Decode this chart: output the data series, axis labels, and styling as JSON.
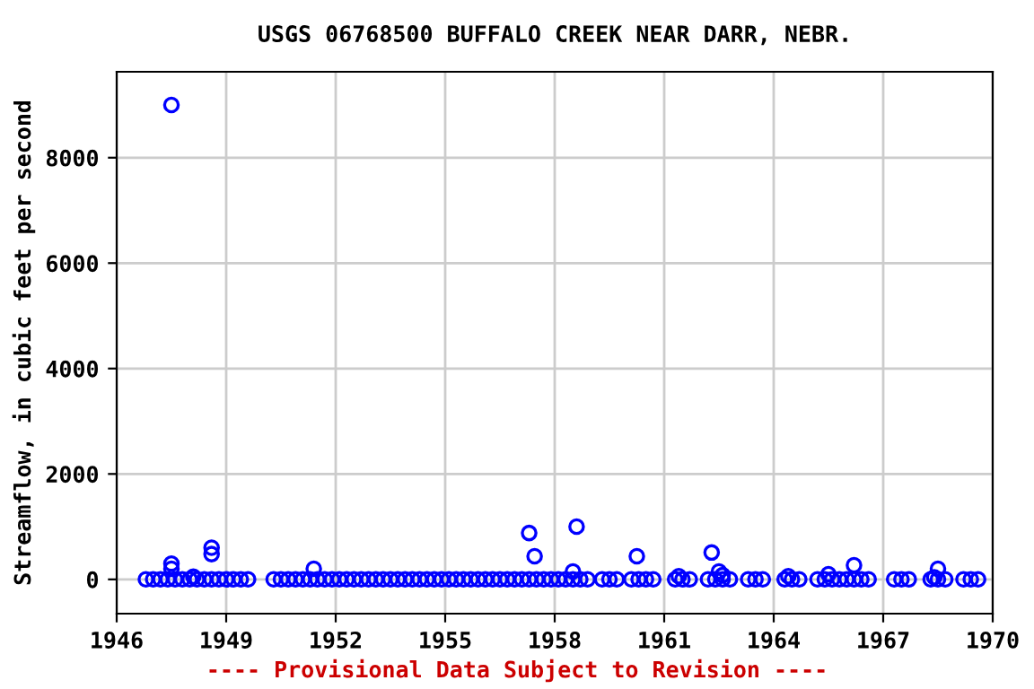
{
  "chart_data": {
    "type": "scatter",
    "title": "USGS 06768500 BUFFALO CREEK NEAR DARR, NEBR.",
    "ylabel": "Streamflow, in cubic feet per second",
    "annotations": [
      "---- Provisional Data Subject to Revision ----"
    ],
    "series": [
      {
        "color": "#0000ff",
        "x": [
          1946.8,
          1947.0,
          1947.2,
          1947.4,
          1947.6,
          1947.8,
          1948.0,
          1948.2,
          1948.4,
          1948.6,
          1948.8,
          1949.0,
          1949.2,
          1949.4,
          1949.6,
          1950.3,
          1950.5,
          1950.7,
          1950.9,
          1951.1,
          1951.3,
          1951.5,
          1951.7,
          1951.9,
          1952.1,
          1952.3,
          1952.5,
          1952.7,
          1952.9,
          1953.1,
          1953.3,
          1953.5,
          1953.7,
          1953.9,
          1954.1,
          1954.3,
          1954.5,
          1954.7,
          1954.9,
          1955.1,
          1955.3,
          1955.5,
          1955.7,
          1955.9,
          1956.1,
          1956.3,
          1956.5,
          1956.7,
          1956.9,
          1957.1,
          1957.3,
          1957.5,
          1957.7,
          1957.9,
          1958.1,
          1958.3,
          1958.5,
          1958.7,
          1958.9,
          1959.3,
          1959.5,
          1959.7,
          1960.1,
          1960.3,
          1960.5,
          1960.7,
          1961.3,
          1961.5,
          1961.7,
          1962.2,
          1962.4,
          1962.6,
          1962.8,
          1963.3,
          1963.5,
          1963.7,
          1964.3,
          1964.5,
          1964.7,
          1965.2,
          1965.4,
          1965.6,
          1965.8,
          1966.0,
          1966.2,
          1966.4,
          1966.6,
          1967.3,
          1967.5,
          1967.7,
          1968.3,
          1968.5,
          1968.7,
          1969.2,
          1969.4,
          1969.6,
          1947.5,
          1947.5,
          1947.5,
          1948.1,
          1948.6,
          1948.6,
          1951.4,
          1957.3,
          1957.45,
          1958.6,
          1958.5,
          1960.25,
          1961.4,
          1962.3,
          1962.5,
          1962.6,
          1964.4,
          1965.5,
          1966.2,
          1968.5,
          1968.4
        ],
        "values": [
          0,
          0,
          0,
          0,
          0,
          0,
          0,
          0,
          0,
          0,
          0,
          0,
          0,
          0,
          0,
          0,
          0,
          0,
          0,
          0,
          0,
          0,
          0,
          0,
          0,
          0,
          0,
          0,
          0,
          0,
          0,
          0,
          0,
          0,
          0,
          0,
          0,
          0,
          0,
          0,
          0,
          0,
          0,
          0,
          0,
          0,
          0,
          0,
          0,
          0,
          0,
          0,
          0,
          0,
          0,
          0,
          0,
          0,
          0,
          0,
          0,
          0,
          0,
          0,
          0,
          0,
          0,
          0,
          0,
          0,
          0,
          0,
          0,
          0,
          0,
          0,
          0,
          0,
          0,
          0,
          0,
          0,
          0,
          0,
          0,
          0,
          0,
          0,
          0,
          0,
          0,
          0,
          0,
          0,
          0,
          0,
          9000,
          300,
          200,
          50,
          600,
          480,
          200,
          880,
          440,
          1000,
          150,
          440,
          60,
          510,
          150,
          80,
          60,
          100,
          270,
          200,
          40
        ]
      }
    ],
    "marker": "circle",
    "xlim": [
      1946,
      1970
    ],
    "xticks": [
      1946,
      1949,
      1952,
      1955,
      1958,
      1961,
      1964,
      1967,
      1970
    ],
    "ylim": [
      -650,
      9630
    ],
    "yticks": [
      0,
      2000,
      4000,
      6000,
      8000
    ],
    "grid": true
  }
}
